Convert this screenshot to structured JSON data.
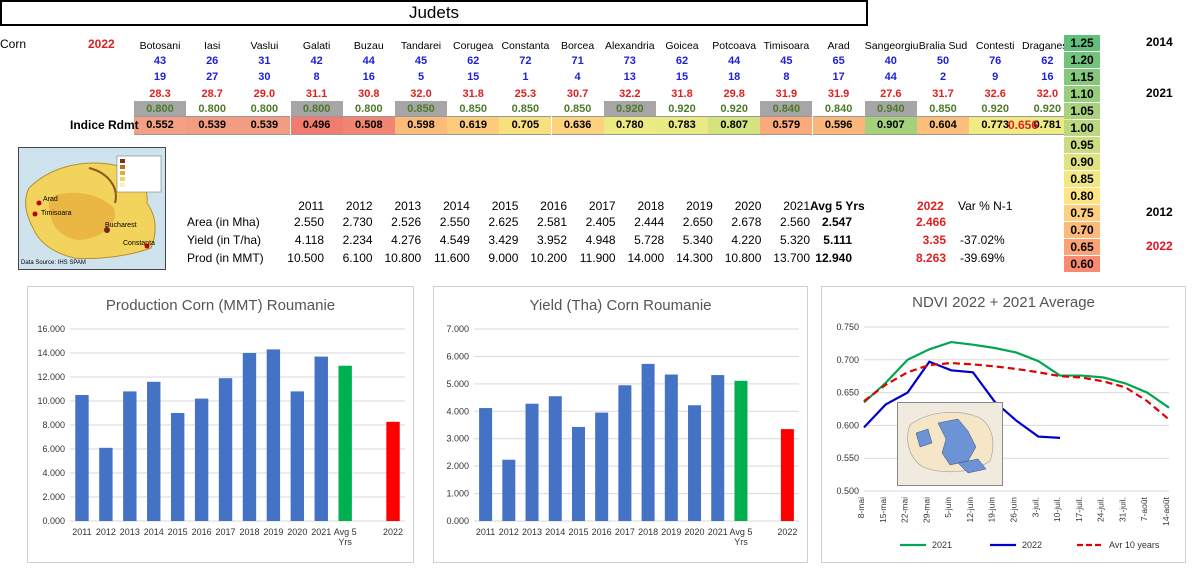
{
  "header": {
    "title": "Judets",
    "crop": "Corn",
    "year": "2022"
  },
  "counties": [
    "Botosani",
    "Iasi",
    "Vaslui",
    "Galati",
    "Buzau",
    "Tandarei",
    "Corugea",
    "Constanta",
    "Borcea",
    "Alexandria",
    "Goicea",
    "Potcoava",
    "Timisoara",
    "Arad",
    "Sangeorgiu",
    "Bralia Sud",
    "Contesti",
    "Draganesti"
  ],
  "row1": [
    "43",
    "26",
    "31",
    "42",
    "44",
    "45",
    "62",
    "72",
    "71",
    "73",
    "62",
    "44",
    "45",
    "65",
    "40",
    "50",
    "76",
    "62"
  ],
  "row2": [
    "19",
    "27",
    "30",
    "8",
    "16",
    "5",
    "15",
    "1",
    "4",
    "13",
    "15",
    "18",
    "8",
    "17",
    "44",
    "2",
    "9",
    "16"
  ],
  "row3": [
    "28.3",
    "28.7",
    "29.0",
    "31.1",
    "30.8",
    "32.0",
    "31.8",
    "25.3",
    "30.7",
    "32.2",
    "31.8",
    "29.8",
    "31.9",
    "31.9",
    "27.6",
    "31.7",
    "32.6",
    "32.0"
  ],
  "row4": [
    "0.800",
    "0.800",
    "0.800",
    "0.800",
    "0.800",
    "0.850",
    "0.850",
    "0.850",
    "0.850",
    "0.920",
    "0.920",
    "0.920",
    "0.840",
    "0.840",
    "0.940",
    "0.850",
    "0.920",
    "0.920"
  ],
  "row4_gray": [
    true,
    false,
    false,
    true,
    false,
    true,
    false,
    false,
    false,
    true,
    false,
    false,
    true,
    false,
    true,
    false,
    false,
    false
  ],
  "indice": {
    "label": "Indice Rdmt",
    "values": [
      "0.552",
      "0.539",
      "0.539",
      "0.496",
      "0.508",
      "0.598",
      "0.619",
      "0.705",
      "0.636",
      "0.780",
      "0.783",
      "0.807",
      "0.579",
      "0.596",
      "0.907",
      "0.604",
      "0.773",
      "0.781"
    ],
    "colors": [
      "#f4a085",
      "#f39b83",
      "#f39b83",
      "#f07b6e",
      "#f18572",
      "#fbbc7a",
      "#fccb7c",
      "#f9e07f",
      "#fdd27e",
      "#ecea83",
      "#e9ea84",
      "#d5e37f",
      "#fba87b",
      "#fbb67a",
      "#a5d17c",
      "#fbbe7b",
      "#f1ea84",
      "#eceb84"
    ],
    "total": "0.656"
  },
  "scale": {
    "values": [
      "1.25",
      "1.20",
      "1.15",
      "1.10",
      "1.05",
      "1.00",
      "0.95",
      "0.90",
      "0.85",
      "0.80",
      "0.75",
      "0.70",
      "0.65",
      "0.60"
    ],
    "colors": [
      "#63be7b",
      "#74c37c",
      "#85c87d",
      "#97cd7e",
      "#a9d27f",
      "#bbd780",
      "#cddc81",
      "#dfe182",
      "#f1e783",
      "#fee482",
      "#fdcf7e",
      "#fcb97a",
      "#fba276",
      "#f98a72"
    ],
    "markers": [
      {
        "label": "2014",
        "at": "1.25",
        "color": "#4472c4"
      },
      {
        "label": "2021",
        "at": "1.10",
        "color": "#4472c4"
      },
      {
        "label": "2012",
        "at": "0.75",
        "color": "#4472c4"
      },
      {
        "label": "2022",
        "at": "0.65",
        "color": "#e81123"
      }
    ]
  },
  "map_source": "Data Source: IHS SPAM",
  "map_labels": [
    "Arad",
    "Timisoara",
    "Bucharest",
    "Constanta"
  ],
  "stats": {
    "years": [
      "2011",
      "2012",
      "2013",
      "2014",
      "2015",
      "2016",
      "2017",
      "2018",
      "2019",
      "2020",
      "2021"
    ],
    "avg_label": "Avg 5 Yrs",
    "cur_label": "2022",
    "var_label": "Var % N-1",
    "rows": [
      {
        "label": "Area (in Mha)",
        "values": [
          "2.550",
          "2.730",
          "2.526",
          "2.550",
          "2.625",
          "2.581",
          "2.405",
          "2.444",
          "2.650",
          "2.678",
          "2.560"
        ],
        "avg": "2.547",
        "cur": "2.466",
        "var": ""
      },
      {
        "label": "Yield (in T/ha)",
        "values": [
          "4.118",
          "2.234",
          "4.276",
          "4.549",
          "3.429",
          "3.952",
          "4.948",
          "5.728",
          "5.340",
          "4.220",
          "5.320"
        ],
        "avg": "5.111",
        "cur": "3.35",
        "var": "-37.02%"
      },
      {
        "label": "Prod (in MMT)",
        "values": [
          "10.500",
          "6.100",
          "10.800",
          "11.600",
          "9.000",
          "10.200",
          "11.900",
          "14.000",
          "14.300",
          "10.800",
          "13.700"
        ],
        "avg": "12.940",
        "cur": "8.263",
        "var": "-39.69%"
      }
    ]
  },
  "chart_data": [
    {
      "type": "bar",
      "title": "Production Corn (MMT) Roumanie",
      "categories": [
        "2011",
        "2012",
        "2013",
        "2014",
        "2015",
        "2016",
        "2017",
        "2018",
        "2019",
        "2020",
        "2021",
        "Avg 5 Yrs",
        "",
        "2022"
      ],
      "values": [
        10.5,
        6.1,
        10.8,
        11.6,
        9.0,
        10.2,
        11.9,
        14.0,
        14.3,
        10.8,
        13.7,
        12.94,
        null,
        8.263
      ],
      "bar_colors": [
        "#4472c4",
        "#4472c4",
        "#4472c4",
        "#4472c4",
        "#4472c4",
        "#4472c4",
        "#4472c4",
        "#4472c4",
        "#4472c4",
        "#4472c4",
        "#4472c4",
        "#00b050",
        "#4472c4",
        "#ff0000"
      ],
      "yticks": [
        "0.000",
        "2.000",
        "4.000",
        "6.000",
        "8.000",
        "10.000",
        "12.000",
        "14.000",
        "16.000"
      ],
      "ylim": [
        0,
        16
      ]
    },
    {
      "type": "bar",
      "title": "Yield (Tha) Corn Roumanie",
      "categories": [
        "2011",
        "2012",
        "2013",
        "2014",
        "2015",
        "2016",
        "2017",
        "2018",
        "2019",
        "2020",
        "2021",
        "Avg 5 Yrs",
        "",
        "2022"
      ],
      "values": [
        4.118,
        2.234,
        4.276,
        4.549,
        3.429,
        3.952,
        4.948,
        5.728,
        5.34,
        4.22,
        5.32,
        5.111,
        null,
        3.35
      ],
      "bar_colors": [
        "#4472c4",
        "#4472c4",
        "#4472c4",
        "#4472c4",
        "#4472c4",
        "#4472c4",
        "#4472c4",
        "#4472c4",
        "#4472c4",
        "#4472c4",
        "#4472c4",
        "#00b050",
        "#4472c4",
        "#ff0000"
      ],
      "yticks": [
        "0.000",
        "1.000",
        "2.000",
        "3.000",
        "4.000",
        "5.000",
        "6.000",
        "7.000"
      ],
      "ylim": [
        0,
        7
      ]
    },
    {
      "type": "line",
      "title": "NDVI 2022 + 2021  Average",
      "categories": [
        "8-mai",
        "15-mai",
        "22-mai",
        "29-mai",
        "5-juin",
        "12-juin",
        "19-juin",
        "26-juin",
        "3-juil.",
        "10-juil.",
        "17-juil.",
        "24-juil.",
        "31-juil.",
        "7-août",
        "14-août"
      ],
      "yticks": [
        "0.500",
        "0.550",
        "0.600",
        "0.650",
        "0.700",
        "0.750"
      ],
      "ylim": [
        0.5,
        0.75
      ],
      "series": [
        {
          "name": "2021",
          "color": "#00a650",
          "dash": false,
          "values": [
            0.635,
            0.665,
            0.7,
            0.716,
            0.727,
            0.723,
            0.718,
            0.711,
            0.698,
            0.676,
            0.676,
            0.673,
            0.664,
            0.65,
            0.627
          ]
        },
        {
          "name": "2022",
          "color": "#0000cc",
          "dash": false,
          "values": [
            0.597,
            0.632,
            0.65,
            0.697,
            0.684,
            0.681,
            0.636,
            0.607,
            0.583,
            0.581,
            null,
            null,
            null,
            null,
            null
          ]
        },
        {
          "name": "Avr 10 years",
          "color": "#e00000",
          "dash": true,
          "values": [
            0.637,
            0.662,
            0.681,
            0.692,
            0.695,
            0.693,
            0.69,
            0.686,
            0.681,
            0.675,
            0.673,
            0.667,
            0.658,
            0.637,
            0.609
          ]
        }
      ]
    }
  ]
}
